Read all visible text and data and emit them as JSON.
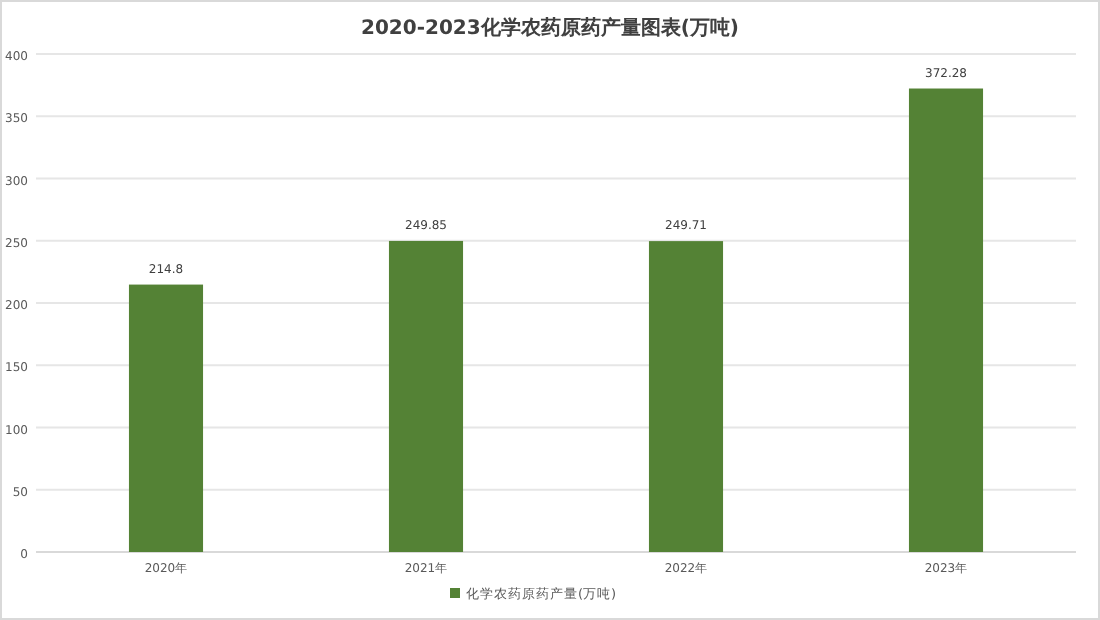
{
  "chart_data": {
    "type": "bar",
    "title": "2020-2023化学农药原药产量图表(万吨)",
    "categories": [
      "2020年",
      "2021年",
      "2022年",
      "2023年"
    ],
    "series": [
      {
        "name": "化学农药原药产量(万吨)",
        "color": "#548235",
        "values": [
          214.8,
          249.85,
          249.71,
          372.28
        ]
      }
    ],
    "ylim": [
      0,
      400
    ],
    "yticks": [
      0,
      50,
      100,
      150,
      200,
      250,
      300,
      350,
      400
    ],
    "grid": "y",
    "legend": "bottom",
    "data_labels": true
  }
}
